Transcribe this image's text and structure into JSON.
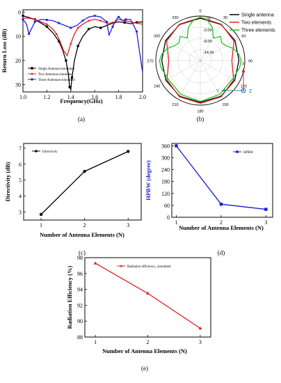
{
  "chart_data": [
    {
      "id": "a",
      "type": "line",
      "caption": "(a)",
      "xlabel": "Frequency(GHz)",
      "ylabel": "Return Loss (dB)",
      "xlim": [
        1.0,
        2.0
      ],
      "ylim": [
        -33,
        1
      ],
      "xticks": [
        "1.0",
        "1.2",
        "1.4",
        "1.6",
        "1.8",
        "2.0"
      ],
      "xtick_values": [
        1.0,
        1.2,
        1.4,
        1.6,
        1.8,
        2.0
      ],
      "yticks": [
        "0",
        "10",
        "20",
        "30"
      ],
      "ytick_values": [
        0,
        -10,
        -20,
        -30
      ],
      "series": [
        {
          "name": "Single Antenna-simulated",
          "color": "#000000",
          "marker": "square",
          "x": [
            1.0,
            1.05,
            1.1,
            1.15,
            1.2,
            1.25,
            1.3,
            1.33,
            1.36,
            1.38,
            1.39,
            1.4,
            1.41,
            1.43,
            1.46,
            1.5,
            1.55,
            1.6,
            1.65,
            1.7,
            1.75,
            1.8,
            1.85,
            1.9,
            1.95,
            2.0
          ],
          "y": [
            -1.5,
            -2.2,
            -3.0,
            -4.5,
            -6.0,
            -8.5,
            -12.0,
            -15.5,
            -20.0,
            -26.0,
            -31.0,
            -32.0,
            -27.0,
            -20.0,
            -14.0,
            -10.0,
            -7.0,
            -6.0,
            -6.5,
            -5.5,
            -4.5,
            -4.0,
            -4.3,
            -4.8,
            -4.2,
            -4.0
          ]
        },
        {
          "name": "Two  Antennas-simulated",
          "color": "#e02020",
          "marker": "triangle",
          "x": [
            1.0,
            1.05,
            1.1,
            1.15,
            1.2,
            1.25,
            1.28,
            1.31,
            1.34,
            1.37,
            1.4,
            1.43,
            1.46,
            1.5,
            1.55,
            1.6,
            1.65,
            1.7,
            1.75,
            1.8,
            1.85,
            1.9,
            1.95,
            2.0
          ],
          "y": [
            -2.5,
            -2.5,
            -3.0,
            -4.0,
            -5.0,
            -7.0,
            -9.0,
            -12.0,
            -16.0,
            -18.0,
            -13.0,
            -9.0,
            -6.5,
            -5.0,
            -3.5,
            -3.0,
            -3.5,
            -4.5,
            -4.5,
            -3.0,
            -3.5,
            -4.0,
            -4.5,
            -5.0
          ]
        },
        {
          "name": "Three  Antennas-simulated",
          "color": "#2020e0",
          "marker": "circle",
          "x": [
            1.0,
            1.03,
            1.05,
            1.07,
            1.1,
            1.15,
            1.2,
            1.25,
            1.3,
            1.35,
            1.4,
            1.45,
            1.5,
            1.55,
            1.6,
            1.65,
            1.7,
            1.72,
            1.75,
            1.78,
            1.8,
            1.83,
            1.86,
            1.9,
            1.95,
            2.0
          ],
          "y": [
            -3.0,
            -5.0,
            -9.0,
            -7.0,
            -4.0,
            -3.0,
            -3.2,
            -3.5,
            -4.5,
            -5.5,
            -6.5,
            -5.5,
            -3.5,
            -2.0,
            -1.5,
            -2.0,
            -4.0,
            -9.5,
            -6.0,
            -3.0,
            -2.0,
            -3.5,
            -3.0,
            -3.0,
            -8.0,
            -25.0
          ]
        }
      ]
    },
    {
      "id": "b",
      "type": "polar",
      "caption": "(b)",
      "angle_labels": [
        "0",
        "30",
        "60",
        "90",
        "120",
        "150",
        "180",
        "210",
        "240",
        "270",
        "300",
        "330"
      ],
      "angle_values": [
        0,
        30,
        60,
        90,
        120,
        150,
        180,
        210,
        240,
        270,
        300,
        330
      ],
      "radial_labels": [
        "4.00",
        "-2.00",
        "-8.00",
        "-14.00"
      ],
      "rlim": [
        -20,
        4
      ],
      "series": [
        {
          "name": "Single antenna",
          "color": "#000000",
          "theta": [
            0,
            30,
            60,
            90,
            120,
            150,
            180,
            210,
            240,
            270,
            300,
            330,
            360
          ],
          "r": [
            2.8,
            2.4,
            1.6,
            0.8,
            1.4,
            2.2,
            2.5,
            2.2,
            1.4,
            0.8,
            1.6,
            2.4,
            2.8
          ]
        },
        {
          "name": "Two elements",
          "color": "#e02020",
          "theta": [
            0,
            30,
            60,
            90,
            120,
            150,
            180,
            210,
            240,
            270,
            300,
            330,
            360
          ],
          "r": [
            3.2,
            2.6,
            1.0,
            -3.0,
            0.8,
            2.5,
            3.0,
            2.5,
            0.8,
            -3.0,
            1.0,
            2.6,
            3.2
          ]
        },
        {
          "name": "Three elements",
          "color": "#22c322",
          "theta": [
            0,
            10,
            20,
            30,
            40,
            50,
            60,
            70,
            80,
            90,
            100,
            120,
            150,
            180,
            210,
            240,
            260,
            270,
            280,
            290,
            300,
            310,
            320,
            330,
            340,
            350,
            360
          ],
          "r": [
            3.5,
            2.0,
            -1.0,
            -6.0,
            -3.0,
            -5.0,
            -4.0,
            -1.0,
            1.0,
            2.0,
            1.5,
            0.0,
            1.0,
            2.0,
            1.0,
            0.0,
            1.5,
            2.0,
            1.0,
            -1.0,
            -4.0,
            -5.0,
            -3.0,
            -6.0,
            -1.0,
            2.0,
            3.5
          ]
        }
      ],
      "axes_labels": {
        "x": "X",
        "y": "Y",
        "z": "Z"
      }
    },
    {
      "id": "c",
      "type": "line",
      "caption": "(c)",
      "xlabel": "Number of Antenna Elements (N)",
      "ylabel": "Directivity (dB)",
      "xlim": [
        0.6,
        3.3
      ],
      "ylim": [
        2.5,
        7.3
      ],
      "xticks": [
        "1",
        "2",
        "3"
      ],
      "xtick_values": [
        1,
        2,
        3
      ],
      "yticks": [
        "3",
        "4",
        "5",
        "6",
        "7"
      ],
      "ytick_values": [
        3,
        4,
        5,
        6,
        7
      ],
      "series": [
        {
          "name": "Directivity",
          "color": "#000000",
          "marker": "circle",
          "x": [
            1,
            2,
            3
          ],
          "y": [
            2.85,
            5.55,
            6.8
          ]
        }
      ]
    },
    {
      "id": "d",
      "type": "line",
      "caption": "(d)",
      "xlabel": "Number of Antenna Elements (N)",
      "ylabel": "HPBW (degree)",
      "xlim": [
        0.9,
        3.15
      ],
      "ylim": [
        0,
        372
      ],
      "xticks": [
        "1",
        "2",
        "3"
      ],
      "xtick_values": [
        1,
        2,
        3
      ],
      "yticks": [
        "0",
        "60",
        "120",
        "180",
        "240",
        "300",
        "360"
      ],
      "ytick_values": [
        0,
        60,
        120,
        180,
        240,
        300,
        360
      ],
      "series": [
        {
          "name": "HPBW",
          "color": "#1a1ad0",
          "marker": "square",
          "x": [
            1,
            2,
            3
          ],
          "y": [
            360,
            66,
            40
          ]
        }
      ]
    },
    {
      "id": "e",
      "type": "line",
      "caption": "(e)",
      "xlabel": "Number of Antenna Elements (N)",
      "ylabel": "Radiation Efficiency (%)",
      "xlim": [
        0.8,
        3.2
      ],
      "ylim": [
        88,
        98
      ],
      "xticks": [
        "1",
        "2",
        "3"
      ],
      "xtick_values": [
        1,
        2,
        3
      ],
      "yticks": [
        "88",
        "90",
        "92",
        "94",
        "96",
        "98"
      ],
      "ytick_values": [
        88,
        90,
        92,
        94,
        96,
        98
      ],
      "series": [
        {
          "name": "Radiation efficiency_simulated",
          "color": "#e02020",
          "marker": "triangle",
          "x": [
            1,
            2,
            3
          ],
          "y": [
            97.3,
            93.5,
            89.1
          ]
        }
      ]
    }
  ]
}
